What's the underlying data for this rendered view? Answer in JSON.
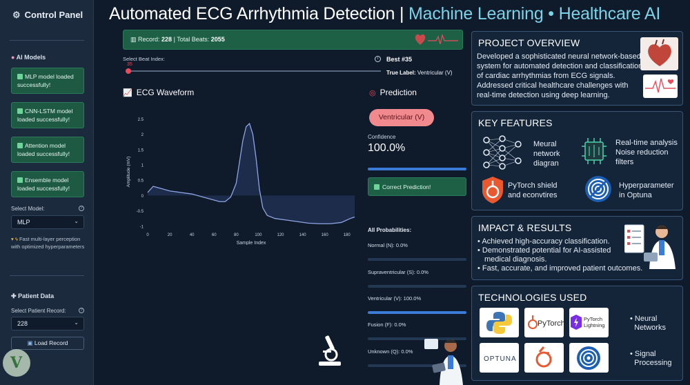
{
  "sidebar": {
    "title": "Control Panel",
    "models_section": "AI Models",
    "model_status": [
      "MLP model loaded successfully!",
      "CNN-LSTM model loaded successfully!",
      "Attention model loaded successfully!",
      "Ensemble model loaded successfully!"
    ],
    "select_model_label": "Select Model:",
    "selected_model": "MLP",
    "model_note": "Fast multi-layer perception with optimized hyperparameters",
    "patient_section": "Patient Data",
    "patient_record_label": "Select Patient Record:",
    "selected_record": "228",
    "load_button": "Load Record"
  },
  "header": {
    "title_main": "Automated ECG Arrhythmia Detection | ",
    "title_sub": "Machine Learning • Healthcare AI"
  },
  "record_bar": {
    "record_label": "Record: ",
    "record_value": "228",
    "beats_label": " | Total Beats: ",
    "beats_value": "2055"
  },
  "beat_selector": {
    "label": "Select Beat Index:",
    "value": "35",
    "fraction": 0.0,
    "best": "Best #35",
    "true_label_prefix": "True Label: ",
    "true_label_value": "Ventricular (V)"
  },
  "waveform": {
    "heading": "ECG Waveform",
    "icon": "chart-icon"
  },
  "chart_data": {
    "type": "line",
    "xlabel": "Sample Index",
    "ylabel": "Amplitude (mV)",
    "xlim": [
      0,
      187
    ],
    "ylim": [
      -1.05,
      2.6
    ],
    "x_ticks": [
      0,
      20,
      40,
      60,
      80,
      100,
      120,
      140,
      160,
      180
    ],
    "y_ticks": [
      -1,
      -0.5,
      0,
      0.5,
      1,
      1.5,
      2,
      2.5
    ],
    "y_tick_labels": [
      "-1",
      "-0.5",
      "0",
      "0.5",
      "1",
      "1.5",
      "2",
      "2.5"
    ],
    "series": [
      {
        "x": [
          0,
          5,
          10,
          20,
          30,
          40,
          50,
          60,
          65,
          70,
          75,
          80,
          83,
          86,
          89,
          92,
          95,
          98,
          101,
          104,
          108,
          115,
          125,
          135,
          145,
          155,
          165,
          175,
          183,
          187
        ],
        "y": [
          0.1,
          0.3,
          0.25,
          0.15,
          0.1,
          0.05,
          -0.05,
          -0.15,
          -0.2,
          -0.2,
          -0.05,
          0.4,
          1.1,
          1.8,
          2.25,
          2.35,
          2.0,
          1.2,
          0.2,
          -0.4,
          -0.65,
          -0.75,
          -0.8,
          -0.85,
          -0.9,
          -0.92,
          -0.92,
          -0.88,
          -0.75,
          -0.7
        ]
      }
    ]
  },
  "prediction": {
    "heading": "Prediction",
    "label": "Ventricular (V)",
    "confidence_label": "Confidence",
    "confidence_value": "100.0%",
    "confidence_fraction": 1.0,
    "correct": "Correct Prediction!",
    "all_probs_label": "All Probabilities:",
    "probabilities": [
      {
        "label": "Normal (N): 0.0%",
        "fraction": 0.0
      },
      {
        "label": "Supraventricular (S): 0.0%",
        "fraction": 0.0
      },
      {
        "label": "Ventricular (V): 100.0%",
        "fraction": 1.0
      },
      {
        "label": "Fusion (F): 0.0%",
        "fraction": 0.0
      },
      {
        "label": "Unknown (Q): 0.0%",
        "fraction": 0.0
      }
    ]
  },
  "overview": {
    "heading": "PROJECT OVERVIEW",
    "lines": [
      "Developed a sophisticated neural network-based",
      "system for automated detection and classification",
      "of cardiac arrhythmias from ECG signals.",
      "Addressed critical healthcare challenges with",
      "real-time detection using deep learning."
    ]
  },
  "features": {
    "heading": "KEY FEATURES",
    "items": [
      [
        "Meural",
        "network",
        "diagran"
      ],
      [
        "Real-time analysis",
        "Noise reduction",
        "filters"
      ],
      [
        "PyTorch shield",
        "and econvtires"
      ],
      [
        "Hyperparameter",
        "in Optuna"
      ]
    ]
  },
  "impact": {
    "heading": "IMPACT & RESULTS",
    "bullets": [
      "Achieved high-accuracy classification.",
      "Demonstrated potential for AI-assisted",
      "medical diagnosis.",
      "Fast, accurate, and improved patient outcomes."
    ]
  },
  "technologies": {
    "heading": "TECHNOLOGIES USED",
    "tiles": [
      "Python",
      "PyTorch",
      "PyTorch Lightning",
      "OPTUNA",
      "PyTorch",
      "Optuna"
    ],
    "tile_text": {
      "pytorch": "PyTorch",
      "lightning_1": "PyTorch",
      "lightning_2": "Lightning",
      "optuna": "OPTUNA"
    },
    "side": {
      "nn_1": "Neural",
      "nn_2": "Networks",
      "sp_1": "Signal",
      "sp_2": "Processing"
    }
  },
  "colors": {
    "accent": "#e94c5c",
    "success": "#1d6046",
    "bar": "#3b7bd8",
    "title_sub": "#7ad3e6"
  }
}
